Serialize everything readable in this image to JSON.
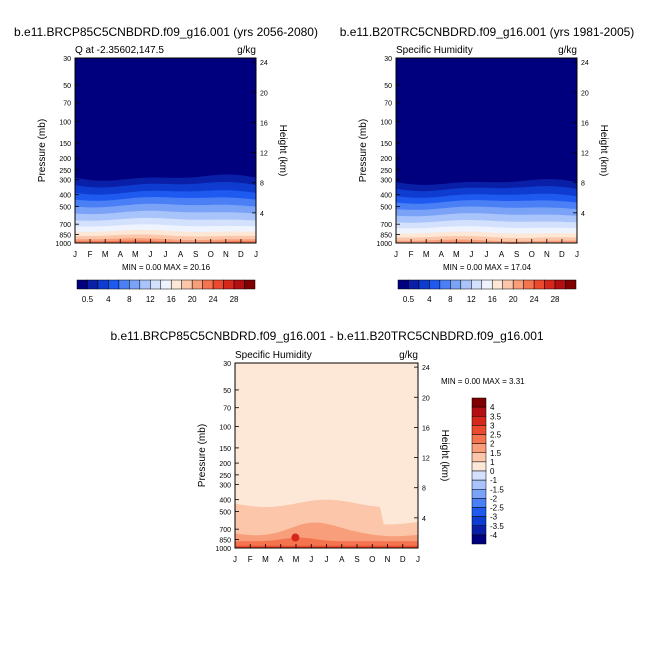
{
  "palette": {
    "blue_white_red": [
      "#00007f",
      "#0a1fa8",
      "#0f3cd0",
      "#1e5af0",
      "#4a7ff6",
      "#7aa3f8",
      "#a9c4fb",
      "#d3e1fd",
      "#eef3fe",
      "#fde8d8",
      "#fbc6a9",
      "#f89e7a",
      "#f4744f",
      "#ec4a2e",
      "#d7261c",
      "#b30f12",
      "#7f0000"
    ]
  },
  "chart_data": [
    {
      "type": "heatmap",
      "title": "b.e11.BRCP85C5CNBDRD.f09_g16.001 (yrs 2056-2080)",
      "subtitle_left": "Q at -2.35602,147.5",
      "subtitle_right": "g/kg",
      "ylabel": "Pressure (mb)",
      "ylabel_right": "Height (km)",
      "x_ticks": [
        "J",
        "F",
        "M",
        "A",
        "M",
        "J",
        "J",
        "A",
        "S",
        "O",
        "N",
        "D",
        "J"
      ],
      "y_ticks": [
        "30",
        "50",
        "70",
        "100",
        "150",
        "200",
        "250",
        "300",
        "400",
        "500",
        "700",
        "850",
        "1000"
      ],
      "y_right_ticks": [
        "24",
        "20",
        "16",
        "12",
        "8",
        "4"
      ],
      "minmax_text": "MIN =   0.00 MAX =  20.16",
      "min": 0.0,
      "max": 20.16,
      "colorbar_labels": [
        "0.5",
        "4",
        "8",
        "12",
        "16",
        "20",
        "24",
        "28"
      ]
    },
    {
      "type": "heatmap",
      "title": "b.e11.B20TRC5CNBDRD.f09_g16.001 (yrs 1981-2005)",
      "subtitle_left": "Specific Humidity",
      "subtitle_right": "g/kg",
      "ylabel": "Pressure (mb)",
      "ylabel_right": "Height (km)",
      "x_ticks": [
        "J",
        "F",
        "M",
        "A",
        "M",
        "J",
        "J",
        "A",
        "S",
        "O",
        "N",
        "D",
        "J"
      ],
      "y_ticks": [
        "30",
        "50",
        "70",
        "100",
        "150",
        "200",
        "250",
        "300",
        "400",
        "500",
        "700",
        "850",
        "1000"
      ],
      "y_right_ticks": [
        "24",
        "20",
        "16",
        "12",
        "8",
        "4"
      ],
      "minmax_text": "MIN =   0.00 MAX =  17.04",
      "min": 0.0,
      "max": 17.04,
      "colorbar_labels": [
        "0.5",
        "4",
        "8",
        "12",
        "16",
        "20",
        "24",
        "28"
      ]
    },
    {
      "type": "heatmap",
      "title": "b.e11.BRCP85C5CNBDRD.f09_g16.001 - b.e11.B20TRC5CNBDRD.f09_g16.001",
      "subtitle_left": "Specific Humidity",
      "subtitle_right": "g/kg",
      "ylabel": "Pressure (mb)",
      "ylabel_right": "Height (km)",
      "x_ticks": [
        "J",
        "F",
        "M",
        "A",
        "M",
        "J",
        "J",
        "A",
        "S",
        "O",
        "N",
        "D",
        "J"
      ],
      "y_ticks": [
        "30",
        "50",
        "70",
        "100",
        "150",
        "200",
        "250",
        "300",
        "400",
        "500",
        "700",
        "850",
        "1000"
      ],
      "y_right_ticks": [
        "24",
        "20",
        "16",
        "12",
        "8",
        "4"
      ],
      "minmax_text": "MIN =   0.00 MAX =   3.31",
      "min": 0.0,
      "max": 3.31,
      "colorbar_labels": [
        "4",
        "3.5",
        "3",
        "2.5",
        "2",
        "1.5",
        "1",
        "0",
        "-1",
        "-1.5",
        "-2",
        "-2.5",
        "-3",
        "-3.5",
        "-4"
      ]
    }
  ]
}
